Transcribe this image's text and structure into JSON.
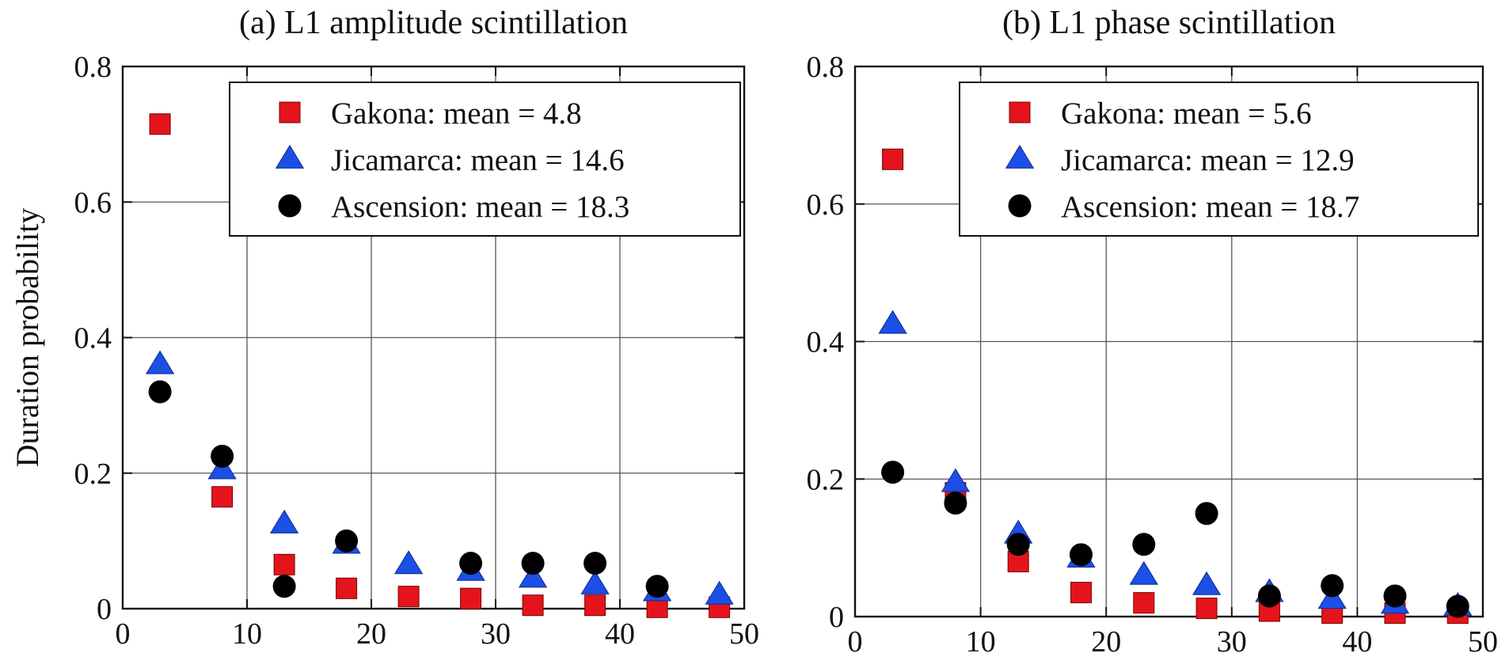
{
  "colors": {
    "gakona": "#e5141c",
    "jicamarca": "#1c4fe6",
    "ascension": "#000000",
    "grid": "#555555",
    "frame": "#111111"
  },
  "chart_data": [
    {
      "type": "scatter",
      "title": "(a) L1 amplitude scintillation",
      "xlabel": "",
      "ylabel": "Duration probability",
      "xlim": [
        0,
        50
      ],
      "ylim": [
        0,
        0.8
      ],
      "xticks": [
        "0",
        "10",
        "20",
        "30",
        "40",
        "50"
      ],
      "yticks": [
        "0",
        "0.2",
        "0.4",
        "0.6",
        "0.8"
      ],
      "grid": true,
      "legend": "top-right",
      "x": [
        3,
        8,
        13,
        18,
        23,
        28,
        33,
        38,
        43,
        48
      ],
      "series": [
        {
          "name": "Gakona: mean = 4.8",
          "marker": "square",
          "values": [
            0.715,
            0.165,
            0.065,
            0.03,
            0.018,
            0.015,
            0.005,
            0.005,
            0.002,
            0.002
          ]
        },
        {
          "name": "Jicamarca: mean = 14.6",
          "marker": "triangle",
          "values": [
            0.36,
            0.205,
            0.125,
            0.095,
            0.065,
            0.055,
            0.045,
            0.035,
            0.025,
            0.02
          ]
        },
        {
          "name": "Ascension: mean = 18.3",
          "marker": "circle",
          "values": [
            0.32,
            0.225,
            0.033,
            0.1,
            null,
            0.067,
            0.067,
            0.067,
            0.033,
            null
          ]
        }
      ]
    },
    {
      "type": "scatter",
      "title": "(b) L1 phase scintillation",
      "xlabel": "",
      "ylabel": "",
      "xlim": [
        0,
        50
      ],
      "ylim": [
        0,
        0.8
      ],
      "xticks": [
        "0",
        "10",
        "20",
        "30",
        "40",
        "50"
      ],
      "yticks": [
        "0",
        "0.2",
        "0.4",
        "0.6",
        "0.8"
      ],
      "grid": true,
      "legend": "top-right",
      "x": [
        3,
        8,
        13,
        18,
        23,
        28,
        33,
        38,
        43,
        48
      ],
      "series": [
        {
          "name": "Gakona: mean = 5.6",
          "marker": "square",
          "values": [
            0.665,
            0.18,
            0.08,
            0.035,
            0.02,
            0.012,
            0.008,
            0.005,
            0.005,
            0.005
          ]
        },
        {
          "name": "Jicamarca: mean = 12.9",
          "marker": "triangle",
          "values": [
            0.425,
            0.195,
            0.12,
            0.085,
            0.06,
            0.045,
            0.035,
            0.025,
            0.018,
            0.015
          ]
        },
        {
          "name": "Ascension: mean = 18.7",
          "marker": "circle",
          "values": [
            0.21,
            0.165,
            0.105,
            0.09,
            0.105,
            0.15,
            0.03,
            0.045,
            0.03,
            0.015
          ]
        }
      ]
    }
  ]
}
